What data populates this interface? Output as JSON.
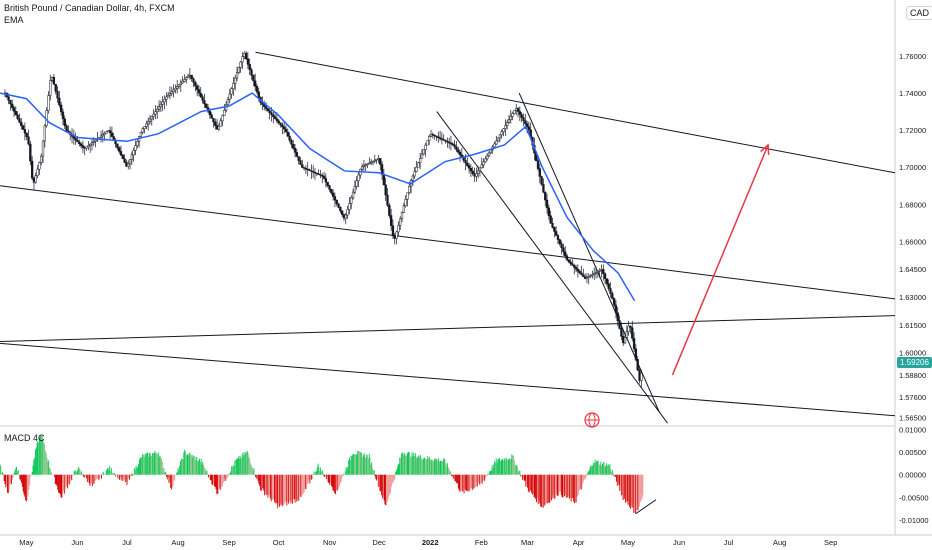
{
  "header": {
    "title": "British Pound / Canadian Dollar, 4h, FXCM",
    "indicator": "EMA",
    "currency": "CAD",
    "last_price": "1.59206"
  },
  "macd_label": "MACD 4C",
  "chart_data": [
    {
      "type": "candlestick",
      "title": "British Pound / Canadian Dollar, 4h, FXCM",
      "x_ticks": [
        "May",
        "Jun",
        "Jul",
        "Aug",
        "Sep",
        "Oct",
        "Nov",
        "Dec",
        "2022",
        "Feb",
        "Mar",
        "Apr",
        "May",
        "Jun",
        "Jul",
        "Aug",
        "Sep"
      ],
      "y_ticks": [
        "1.76000",
        "1.74000",
        "1.72000",
        "1.70000",
        "1.68000",
        "1.66000",
        "1.64500",
        "1.63000",
        "1.61500",
        "1.60000",
        "1.58800",
        "1.57600",
        "1.56500"
      ],
      "ylim": [
        1.561,
        1.774
      ],
      "price_path": [
        [
          "2021-04-18",
          1.74
        ],
        [
          "2021-05-02",
          1.715
        ],
        [
          "2021-05-05",
          1.69
        ],
        [
          "2021-05-10",
          1.706
        ],
        [
          "2021-05-16",
          1.7505
        ],
        [
          "2021-05-25",
          1.72
        ],
        [
          "2021-06-05",
          1.71
        ],
        [
          "2021-06-20",
          1.72
        ],
        [
          "2021-07-01",
          1.7
        ],
        [
          "2021-07-10",
          1.72
        ],
        [
          "2021-07-25",
          1.738
        ],
        [
          "2021-08-08",
          1.75
        ],
        [
          "2021-08-25",
          1.72
        ],
        [
          "2021-09-10",
          1.762
        ],
        [
          "2021-09-20",
          1.735
        ],
        [
          "2021-10-05",
          1.72
        ],
        [
          "2021-10-15",
          1.7
        ],
        [
          "2021-10-28",
          1.695
        ],
        [
          "2021-11-10",
          1.672
        ],
        [
          "2021-11-20",
          1.7
        ],
        [
          "2021-12-01",
          1.705
        ],
        [
          "2021-12-10",
          1.66
        ],
        [
          "2021-12-20",
          1.692
        ],
        [
          "2022-01-01",
          1.718
        ],
        [
          "2022-01-15",
          1.712
        ],
        [
          "2022-01-28",
          1.695
        ],
        [
          "2022-02-10",
          1.714
        ],
        [
          "2022-02-22",
          1.732
        ],
        [
          "2022-03-02",
          1.72
        ],
        [
          "2022-03-15",
          1.67
        ],
        [
          "2022-03-25",
          1.65
        ],
        [
          "2022-04-05",
          1.64
        ],
        [
          "2022-04-15",
          1.645
        ],
        [
          "2022-04-22",
          1.628
        ],
        [
          "2022-04-28",
          1.605
        ],
        [
          "2022-05-02",
          1.616
        ],
        [
          "2022-05-08",
          1.585
        ],
        [
          "2022-05-10",
          1.59206
        ]
      ],
      "ema": [
        [
          "2021-04-15",
          1.74
        ],
        [
          "2021-05-01",
          1.737
        ],
        [
          "2021-05-15",
          1.724
        ],
        [
          "2021-06-01",
          1.716
        ],
        [
          "2021-07-01",
          1.714
        ],
        [
          "2021-07-20",
          1.718
        ],
        [
          "2021-08-15",
          1.73
        ],
        [
          "2021-09-01",
          1.733
        ],
        [
          "2021-09-15",
          1.74
        ],
        [
          "2021-10-01",
          1.728
        ],
        [
          "2021-10-20",
          1.71
        ],
        [
          "2021-11-10",
          1.698
        ],
        [
          "2021-12-01",
          1.697
        ],
        [
          "2021-12-20",
          1.691
        ],
        [
          "2022-01-10",
          1.703
        ],
        [
          "2022-01-28",
          1.707
        ],
        [
          "2022-02-15",
          1.712
        ],
        [
          "2022-02-28",
          1.722
        ],
        [
          "2022-03-10",
          1.7
        ],
        [
          "2022-03-25",
          1.673
        ],
        [
          "2022-04-10",
          1.655
        ],
        [
          "2022-04-25",
          1.643
        ],
        [
          "2022-05-05",
          1.628
        ]
      ],
      "trend_lines": [
        {
          "from": [
            "2021-09-17",
            1.762
          ],
          "to": [
            "2022-10-10",
            1.697
          ]
        },
        {
          "from": [
            "2021-04-15",
            1.69
          ],
          "to": [
            "2022-10-10",
            1.629
          ]
        },
        {
          "from": [
            "2021-04-15",
            1.605
          ],
          "to": [
            "2022-10-10",
            1.566
          ]
        },
        {
          "from": [
            "2021-04-15",
            1.606
          ],
          "to": [
            "2022-10-10",
            1.62
          ]
        },
        {
          "from": [
            "2022-01-05",
            1.73
          ],
          "to": [
            "2022-05-25",
            1.562
          ]
        },
        {
          "from": [
            "2022-02-24",
            1.74
          ],
          "to": [
            "2022-05-20",
            1.568
          ]
        }
      ],
      "arrow": {
        "from": [
          "2022-05-28",
          1.588
        ],
        "to": [
          "2022-07-25",
          1.712
        ],
        "color": "#e53946"
      }
    },
    {
      "type": "bar",
      "title": "MACD 4C",
      "y_ticks": [
        "0.01000",
        "0.00500",
        "0.00000",
        "-0.00500",
        "-0.01000"
      ],
      "ylim": [
        -0.0115,
        0.0105
      ],
      "histogram_path": [
        [
          "2021-04-15",
          0.002
        ],
        [
          "2021-04-20",
          -0.004
        ],
        [
          "2021-04-25",
          0.002
        ],
        [
          "2021-05-01",
          -0.006
        ],
        [
          "2021-05-07",
          0.006
        ],
        [
          "2021-05-10",
          0.009
        ],
        [
          "2021-05-15",
          0.002
        ],
        [
          "2021-05-22",
          -0.005
        ],
        [
          "2021-06-01",
          0.0015
        ],
        [
          "2021-06-10",
          -0.0025
        ],
        [
          "2021-06-20",
          0.0015
        ],
        [
          "2021-07-01",
          -0.002
        ],
        [
          "2021-07-10",
          0.004
        ],
        [
          "2021-07-20",
          0.005
        ],
        [
          "2021-07-28",
          -0.003
        ],
        [
          "2021-08-05",
          0.005
        ],
        [
          "2021-08-15",
          0.003
        ],
        [
          "2021-08-25",
          -0.004
        ],
        [
          "2021-09-05",
          0.003
        ],
        [
          "2021-09-12",
          0.005
        ],
        [
          "2021-09-20",
          -0.003
        ],
        [
          "2021-10-01",
          -0.007
        ],
        [
          "2021-10-15",
          -0.005
        ],
        [
          "2021-10-25",
          0.002
        ],
        [
          "2021-11-05",
          -0.004
        ],
        [
          "2021-11-15",
          0.005
        ],
        [
          "2021-11-25",
          0.004
        ],
        [
          "2021-12-05",
          -0.007
        ],
        [
          "2021-12-15",
          0.005
        ],
        [
          "2021-12-25",
          0.004
        ],
        [
          "2022-01-10",
          0.003
        ],
        [
          "2022-01-20",
          -0.004
        ],
        [
          "2022-02-01",
          -0.002
        ],
        [
          "2022-02-10",
          0.003
        ],
        [
          "2022-02-20",
          0.004
        ],
        [
          "2022-03-01",
          -0.003
        ],
        [
          "2022-03-10",
          -0.007
        ],
        [
          "2022-03-20",
          -0.004
        ],
        [
          "2022-03-30",
          -0.006
        ],
        [
          "2022-04-10",
          0.003
        ],
        [
          "2022-04-20",
          0.002
        ],
        [
          "2022-04-28",
          -0.005
        ],
        [
          "2022-05-06",
          -0.0085
        ],
        [
          "2022-05-10",
          -0.005
        ]
      ],
      "annotation_line": {
        "from": [
          "2022-05-06",
          -0.0085
        ],
        "to": [
          "2022-05-18",
          -0.0055
        ]
      }
    }
  ]
}
